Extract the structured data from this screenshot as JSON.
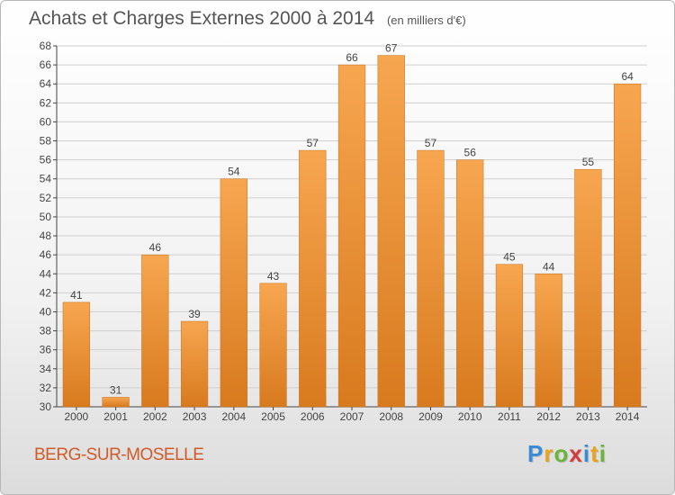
{
  "header": {
    "title": "Achats et Charges Externes 2000 à 2014",
    "subtitle": "(en milliers d'€)"
  },
  "location": "BERG-SUR-MOSELLE",
  "logo": {
    "text": "Proxiti",
    "letters": [
      {
        "char": "P",
        "color": "#3a8ad6"
      },
      {
        "char": "r",
        "color": "#e8a21c"
      },
      {
        "char": "o",
        "color": "#6ab53a"
      },
      {
        "char": "x",
        "color": "#d63a3a"
      },
      {
        "char": "i",
        "color": "#3a8ad6"
      },
      {
        "char": "t",
        "color": "#e8a21c"
      },
      {
        "char": "i",
        "color": "#6ab53a"
      }
    ]
  },
  "colors": {
    "bar_light": "#f7a650",
    "bar_dark": "#d87a1e",
    "grid": "#cfcfcf",
    "axis": "#444444",
    "location": "#d05a28"
  },
  "chart_data": {
    "type": "bar",
    "title": "Achats et Charges Externes 2000 à 2014",
    "subtitle": "(en milliers d'€)",
    "xlabel": "",
    "ylabel": "",
    "categories": [
      "2000",
      "2001",
      "2002",
      "2003",
      "2004",
      "2005",
      "2006",
      "2007",
      "2008",
      "2009",
      "2010",
      "2011",
      "2012",
      "2013",
      "2014"
    ],
    "values": [
      41,
      31,
      46,
      39,
      54,
      43,
      57,
      66,
      67,
      57,
      56,
      45,
      44,
      55,
      64
    ],
    "ylim": [
      30,
      68
    ],
    "yticks": [
      30,
      32,
      34,
      36,
      38,
      40,
      42,
      44,
      46,
      48,
      50,
      52,
      54,
      56,
      58,
      60,
      62,
      64,
      66,
      68
    ],
    "grid": true,
    "data_labels": true
  }
}
